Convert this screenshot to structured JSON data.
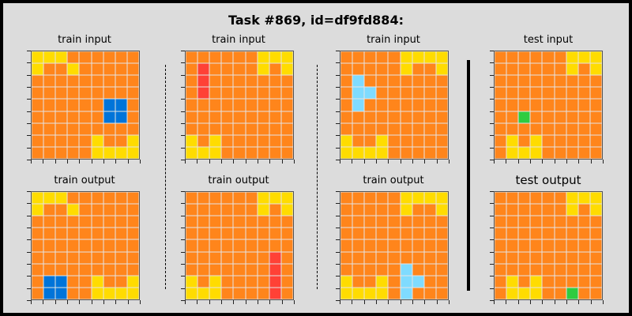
{
  "title": "Task #869, id=df9fd884:",
  "colors": {
    "0": "#000000",
    "1": "#0074d9",
    "2": "#ff4136",
    "3": "#2ecc40",
    "4": "#ffdc00",
    "5": "#aaaaaa",
    "6": "#f012be",
    "7": "#ff851b",
    "8": "#7fdbff",
    "9": "#870c25"
  },
  "panels": [
    {
      "label": "train input",
      "grid": [
        [
          4,
          4,
          4,
          7,
          7,
          7,
          7,
          7,
          7
        ],
        [
          4,
          7,
          7,
          4,
          7,
          7,
          7,
          7,
          7
        ],
        [
          7,
          7,
          7,
          7,
          7,
          7,
          7,
          7,
          7
        ],
        [
          7,
          7,
          7,
          7,
          7,
          7,
          7,
          7,
          7
        ],
        [
          7,
          7,
          7,
          7,
          7,
          7,
          1,
          1,
          7
        ],
        [
          7,
          7,
          7,
          7,
          7,
          7,
          1,
          1,
          7
        ],
        [
          7,
          7,
          7,
          7,
          7,
          7,
          7,
          7,
          7
        ],
        [
          7,
          7,
          7,
          7,
          7,
          4,
          7,
          7,
          4
        ],
        [
          7,
          7,
          7,
          7,
          7,
          4,
          4,
          4,
          4
        ]
      ]
    },
    {
      "label": "train input",
      "grid": [
        [
          7,
          7,
          7,
          7,
          7,
          7,
          4,
          4,
          4
        ],
        [
          7,
          2,
          7,
          7,
          7,
          7,
          4,
          7,
          4
        ],
        [
          7,
          2,
          7,
          7,
          7,
          7,
          7,
          7,
          7
        ],
        [
          7,
          2,
          7,
          7,
          7,
          7,
          7,
          7,
          7
        ],
        [
          7,
          7,
          7,
          7,
          7,
          7,
          7,
          7,
          7
        ],
        [
          7,
          7,
          7,
          7,
          7,
          7,
          7,
          7,
          7
        ],
        [
          7,
          7,
          7,
          7,
          7,
          7,
          7,
          7,
          7
        ],
        [
          4,
          7,
          4,
          7,
          7,
          7,
          7,
          7,
          7
        ],
        [
          4,
          4,
          4,
          7,
          7,
          7,
          7,
          7,
          7
        ]
      ]
    },
    {
      "label": "train input",
      "grid": [
        [
          7,
          7,
          7,
          7,
          7,
          4,
          4,
          4,
          4
        ],
        [
          7,
          7,
          7,
          7,
          7,
          4,
          7,
          7,
          4
        ],
        [
          7,
          8,
          7,
          7,
          7,
          7,
          7,
          7,
          7
        ],
        [
          7,
          8,
          8,
          7,
          7,
          7,
          7,
          7,
          7
        ],
        [
          7,
          8,
          7,
          7,
          7,
          7,
          7,
          7,
          7
        ],
        [
          7,
          7,
          7,
          7,
          7,
          7,
          7,
          7,
          7
        ],
        [
          7,
          7,
          7,
          7,
          7,
          7,
          7,
          7,
          7
        ],
        [
          4,
          7,
          7,
          4,
          7,
          7,
          7,
          7,
          7
        ],
        [
          4,
          4,
          4,
          4,
          7,
          7,
          7,
          7,
          7
        ]
      ]
    },
    {
      "label": "test input",
      "grid": [
        [
          7,
          7,
          7,
          7,
          7,
          7,
          4,
          4,
          4
        ],
        [
          7,
          7,
          7,
          7,
          7,
          7,
          4,
          7,
          4
        ],
        [
          7,
          7,
          7,
          7,
          7,
          7,
          7,
          7,
          7
        ],
        [
          7,
          7,
          7,
          7,
          7,
          7,
          7,
          7,
          7
        ],
        [
          7,
          7,
          7,
          7,
          7,
          7,
          7,
          7,
          7
        ],
        [
          7,
          7,
          3,
          7,
          7,
          7,
          7,
          7,
          7
        ],
        [
          7,
          7,
          7,
          7,
          7,
          7,
          7,
          7,
          7
        ],
        [
          7,
          4,
          7,
          4,
          7,
          7,
          7,
          7,
          7
        ],
        [
          7,
          4,
          4,
          4,
          7,
          7,
          7,
          7,
          7
        ]
      ]
    },
    {
      "label": "train output",
      "grid": [
        [
          4,
          4,
          4,
          7,
          7,
          7,
          7,
          7,
          7
        ],
        [
          4,
          7,
          7,
          4,
          7,
          7,
          7,
          7,
          7
        ],
        [
          7,
          7,
          7,
          7,
          7,
          7,
          7,
          7,
          7
        ],
        [
          7,
          7,
          7,
          7,
          7,
          7,
          7,
          7,
          7
        ],
        [
          7,
          7,
          7,
          7,
          7,
          7,
          7,
          7,
          7
        ],
        [
          7,
          7,
          7,
          7,
          7,
          7,
          7,
          7,
          7
        ],
        [
          7,
          7,
          7,
          7,
          7,
          7,
          7,
          7,
          7
        ],
        [
          7,
          1,
          1,
          7,
          7,
          4,
          7,
          7,
          4
        ],
        [
          7,
          1,
          1,
          7,
          7,
          4,
          4,
          4,
          4
        ]
      ]
    },
    {
      "label": "train output",
      "grid": [
        [
          7,
          7,
          7,
          7,
          7,
          7,
          4,
          4,
          4
        ],
        [
          7,
          7,
          7,
          7,
          7,
          7,
          4,
          7,
          4
        ],
        [
          7,
          7,
          7,
          7,
          7,
          7,
          7,
          7,
          7
        ],
        [
          7,
          7,
          7,
          7,
          7,
          7,
          7,
          7,
          7
        ],
        [
          7,
          7,
          7,
          7,
          7,
          7,
          7,
          7,
          7
        ],
        [
          7,
          7,
          7,
          7,
          7,
          7,
          7,
          2,
          7
        ],
        [
          7,
          7,
          7,
          7,
          7,
          7,
          7,
          2,
          7
        ],
        [
          4,
          7,
          4,
          7,
          7,
          7,
          7,
          2,
          7
        ],
        [
          4,
          4,
          4,
          7,
          7,
          7,
          7,
          2,
          7
        ]
      ]
    },
    {
      "label": "train output",
      "grid": [
        [
          7,
          7,
          7,
          7,
          7,
          4,
          4,
          4,
          4
        ],
        [
          7,
          7,
          7,
          7,
          7,
          4,
          7,
          7,
          4
        ],
        [
          7,
          7,
          7,
          7,
          7,
          7,
          7,
          7,
          7
        ],
        [
          7,
          7,
          7,
          7,
          7,
          7,
          7,
          7,
          7
        ],
        [
          7,
          7,
          7,
          7,
          7,
          7,
          7,
          7,
          7
        ],
        [
          7,
          7,
          7,
          7,
          7,
          7,
          7,
          7,
          7
        ],
        [
          7,
          7,
          7,
          7,
          7,
          8,
          7,
          7,
          7
        ],
        [
          4,
          7,
          7,
          4,
          7,
          8,
          8,
          7,
          7
        ],
        [
          4,
          4,
          4,
          4,
          7,
          8,
          7,
          7,
          7
        ]
      ]
    },
    {
      "label": "test output",
      "grid": [
        [
          7,
          7,
          7,
          7,
          7,
          7,
          4,
          4,
          4
        ],
        [
          7,
          7,
          7,
          7,
          7,
          7,
          4,
          7,
          4
        ],
        [
          7,
          7,
          7,
          7,
          7,
          7,
          7,
          7,
          7
        ],
        [
          7,
          7,
          7,
          7,
          7,
          7,
          7,
          7,
          7
        ],
        [
          7,
          7,
          7,
          7,
          7,
          7,
          7,
          7,
          7
        ],
        [
          7,
          7,
          7,
          7,
          7,
          7,
          7,
          7,
          7
        ],
        [
          7,
          7,
          7,
          7,
          7,
          7,
          7,
          7,
          7
        ],
        [
          7,
          4,
          7,
          4,
          7,
          7,
          7,
          7,
          7
        ],
        [
          7,
          4,
          4,
          4,
          7,
          7,
          3,
          7,
          7
        ]
      ]
    }
  ]
}
